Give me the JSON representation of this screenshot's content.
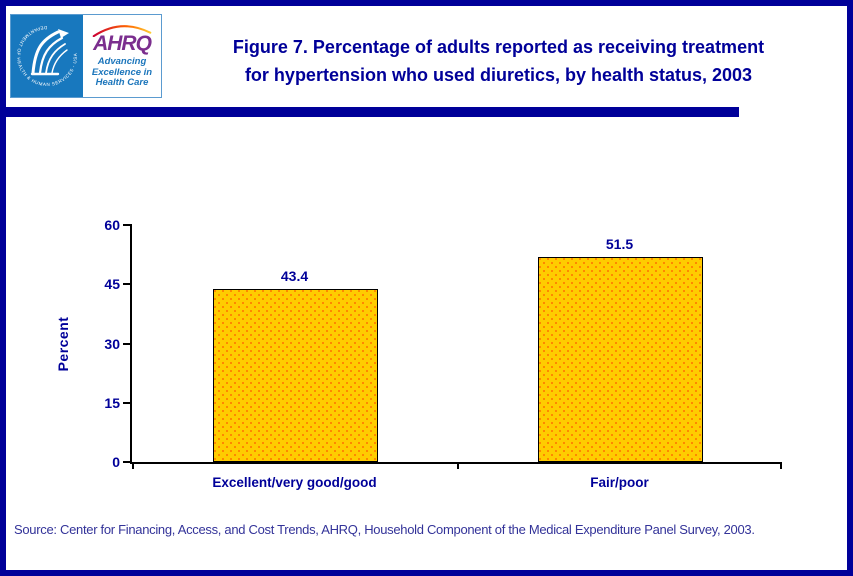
{
  "colors": {
    "frame_navy": "#000099",
    "title_navy": "#000099",
    "bar_fill": "#FFCC00",
    "bar_dot": "#FF6600",
    "bar_border": "#000000",
    "seal_blue": "#1878BE",
    "ahrq_purple": "#7B2E8E",
    "ahrq_blue": "#1B75BB",
    "source_text": "#333399"
  },
  "header": {
    "logo": {
      "seal_text": "DEPARTMENT OF HEALTH & HUMAN SERVICES - USA",
      "org": "AHRQ",
      "tagline_lines": [
        "Advancing",
        "Excellence in",
        "Health Care"
      ]
    },
    "title_lines": [
      "Figure 7. Percentage of adults reported as receiving treatment",
      "for hypertension who used diuretics, by health status, 2003"
    ]
  },
  "chart_data": {
    "type": "bar",
    "title": "Figure 7. Percentage of adults reported as receiving treatment for hypertension who used diuretics, by health status, 2003",
    "categories": [
      "Excellent/very good/good",
      "Fair/poor"
    ],
    "values": [
      43.4,
      51.5
    ],
    "data_labels": [
      "43.4",
      "51.5"
    ],
    "xlabel": "",
    "ylabel": "Percent",
    "ylim": [
      0,
      60
    ],
    "yticks": [
      0,
      15,
      30,
      45,
      60
    ],
    "grid": false,
    "legend": "none"
  },
  "footer": {
    "source": "Source: Center for Financing, Access, and Cost Trends, AHRQ, Household Component of the Medical Expenditure Panel Survey, 2003."
  }
}
